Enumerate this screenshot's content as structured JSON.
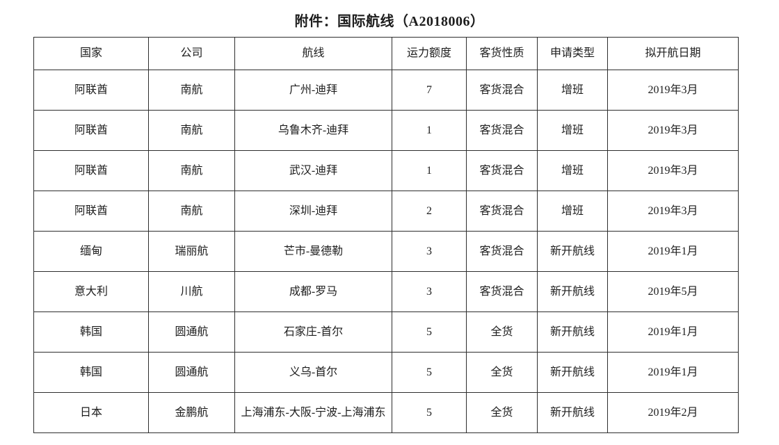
{
  "document": {
    "title": "附件：国际航线（A2018006）"
  },
  "table": {
    "headers": [
      "国家",
      "公司",
      "航线",
      "运力额度",
      "客货性质",
      "申请类型",
      "拟开航日期"
    ],
    "rows": [
      [
        "阿联酋",
        "南航",
        "广州-迪拜",
        "7",
        "客货混合",
        "增班",
        "2019年3月"
      ],
      [
        "阿联酋",
        "南航",
        "乌鲁木齐-迪拜",
        "1",
        "客货混合",
        "增班",
        "2019年3月"
      ],
      [
        "阿联酋",
        "南航",
        "武汉-迪拜",
        "1",
        "客货混合",
        "增班",
        "2019年3月"
      ],
      [
        "阿联酋",
        "南航",
        "深圳-迪拜",
        "2",
        "客货混合",
        "增班",
        "2019年3月"
      ],
      [
        "缅甸",
        "瑞丽航",
        "芒市-曼德勒",
        "3",
        "客货混合",
        "新开航线",
        "2019年1月"
      ],
      [
        "意大利",
        "川航",
        "成都-罗马",
        "3",
        "客货混合",
        "新开航线",
        "2019年5月"
      ],
      [
        "韩国",
        "圆通航",
        "石家庄-首尔",
        "5",
        "全货",
        "新开航线",
        "2019年1月"
      ],
      [
        "韩国",
        "圆通航",
        "义乌-首尔",
        "5",
        "全货",
        "新开航线",
        "2019年1月"
      ],
      [
        "日本",
        "金鹏航",
        "上海浦东-大阪-宁波-上海浦东",
        "5",
        "全货",
        "新开航线",
        "2019年2月"
      ]
    ]
  },
  "colors": {
    "text": "#1d1d1d",
    "border": "#2d2d2d",
    "background": "#ffffff"
  }
}
